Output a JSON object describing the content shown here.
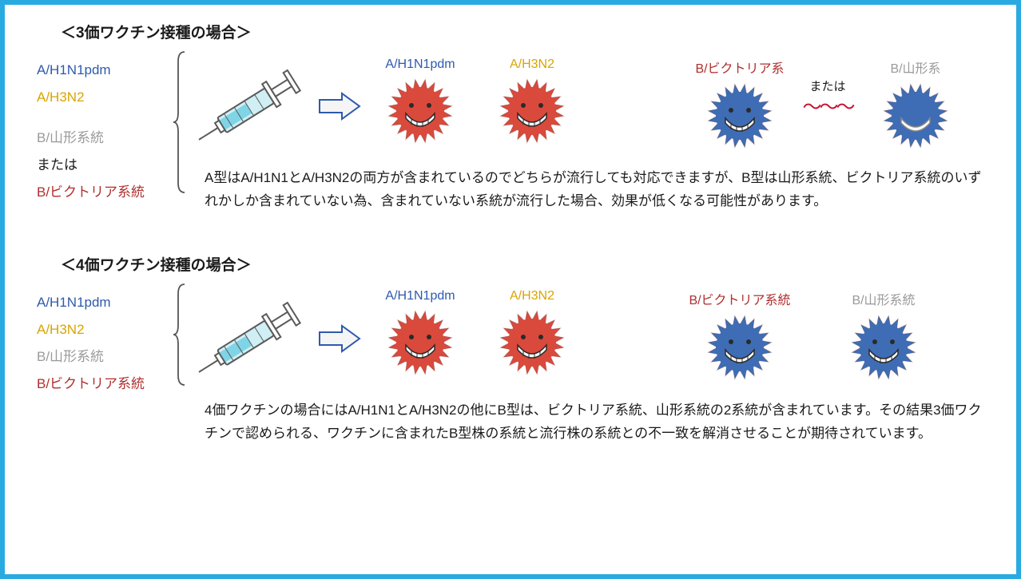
{
  "colors": {
    "blue": "#2e5aac",
    "orange": "#d9a400",
    "gray": "#9a9a9a",
    "darkred": "#b02e2e",
    "black": "#1a1a1a",
    "virus_red": "#d94a3d",
    "virus_blue": "#3e6db5",
    "virus_gray": "#9a9a9a",
    "syringe_body": "#cfeff4",
    "syringe_outline": "#5a5a5a",
    "syringe_fluid": "#7fd4e6",
    "arrow_fill": "#f5f5f5",
    "arrow_stroke": "#2e5aac"
  },
  "section3": {
    "title": "＜3価ワクチン接種の場合＞",
    "strains": [
      {
        "text": "A/H1N1pdm",
        "colorKey": "blue"
      },
      {
        "text": "A/H3N2",
        "colorKey": "orange"
      },
      {
        "text": "",
        "colorKey": "black"
      },
      {
        "text": "B/山形系統",
        "colorKey": "gray"
      },
      {
        "text": "または",
        "colorKey": "black"
      },
      {
        "text": "B/ビクトリア系統",
        "colorKey": "darkred"
      }
    ],
    "brace_height": 180,
    "viruses": [
      {
        "label": "A/H1N1pdm",
        "labelColorKey": "blue",
        "fillKey": "virus_red",
        "face": true
      },
      {
        "label": "A/H3N2",
        "labelColorKey": "orange",
        "fillKey": "virus_red",
        "face": true
      },
      {
        "spacer": true
      },
      {
        "label": "B/ビクトリア系",
        "labelColorKey": "darkred",
        "fillKey": "virus_blue",
        "face": true
      },
      {
        "matawa": "または"
      },
      {
        "label": "B/山形系",
        "labelColorKey": "gray",
        "fillKey": "virus_blue",
        "face": false
      }
    ],
    "desc": "A型はA/H1N1とA/H3N2の両方が含まれているのでどちらが流行しても対応できますが、B型は山形系統、ビクトリア系統のいずれかしか含まれていない為、含まれていない系統が流行した場合、効果が低くなる可能性があります。"
  },
  "section4": {
    "title": "＜4価ワクチン接種の場合＞",
    "strains": [
      {
        "text": "A/H1N1pdm",
        "colorKey": "blue"
      },
      {
        "text": "A/H3N2",
        "colorKey": "orange"
      },
      {
        "text": "B/山形系統",
        "colorKey": "gray"
      },
      {
        "text": "B/ビクトリア系統",
        "colorKey": "darkred"
      }
    ],
    "brace_height": 130,
    "viruses": [
      {
        "label": "A/H1N1pdm",
        "labelColorKey": "blue",
        "fillKey": "virus_red",
        "face": true
      },
      {
        "label": "A/H3N2",
        "labelColorKey": "orange",
        "fillKey": "virus_red",
        "face": true
      },
      {
        "spacer": true
      },
      {
        "label": "B/ビクトリア系統",
        "labelColorKey": "darkred",
        "fillKey": "virus_blue",
        "face": true
      },
      {
        "gap": true
      },
      {
        "label": "B/山形系統",
        "labelColorKey": "gray",
        "fillKey": "virus_blue",
        "face": true
      }
    ],
    "desc": "4価ワクチンの場合にはA/H1N1とA/H3N2の他にB型は、ビクトリア系統、山形系統の2系統が含まれています。その結果3価ワクチンで認められる、ワクチンに含まれたB型株の系統と流行株の系統との不一致を解消させることが期待されています。"
  }
}
